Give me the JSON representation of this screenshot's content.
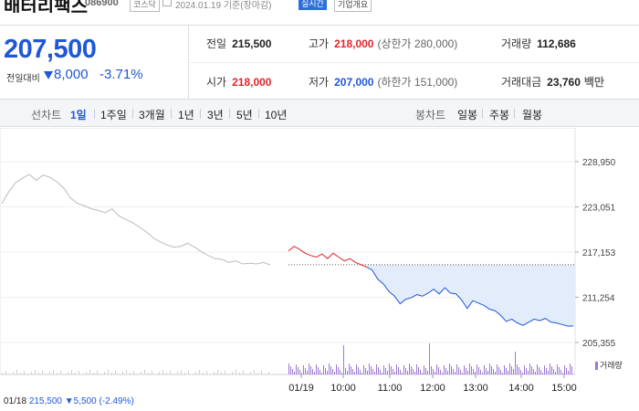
{
  "header": {
    "stock_name": "배터리팩스",
    "stock_code": "086900",
    "market": "코스닥",
    "date_basis": "2024.01.19 기준(장마감)",
    "live_button": "실시간",
    "overview_button": "기업개요"
  },
  "price": {
    "current": "207,500",
    "change_label": "전일대비",
    "change": "8,000",
    "change_pct": "-3.71%"
  },
  "stats": {
    "prev_close_label": "전일",
    "prev_close": "215,500",
    "high_label": "고가",
    "high": "218,000",
    "upper_limit": "(상한가 280,000)",
    "volume_label": "거래량",
    "volume": "112,686",
    "open_label": "시가",
    "open": "218,000",
    "low_label": "저가",
    "low": "207,000",
    "lower_limit": "(하한가 151,000)",
    "amount_label": "거래대금",
    "amount": "23,760",
    "amount_unit": "백만"
  },
  "toolbar": {
    "line_chart_label": "선차트",
    "ranges": [
      "1일",
      "1주일",
      "3개월",
      "1년",
      "3년",
      "5년",
      "10년"
    ],
    "active_range": "1일",
    "candle_label": "봉차트",
    "candles": [
      "일봉",
      "주봉",
      "월봉"
    ]
  },
  "colors": {
    "up": "#e0242d",
    "down": "#1f57d6",
    "prev_day": "#bbbbbb",
    "volume": "#9a79d6",
    "fill": "#e2ecfb"
  },
  "chart_data": {
    "type": "line",
    "y_ticks": [
      "228,950",
      "223,051",
      "217,153",
      "211,254",
      "205,355"
    ],
    "ylim": [
      205355,
      228950
    ],
    "x_ticks": [
      "01/19",
      "10:00",
      "11:00",
      "12:00",
      "13:00",
      "14:00",
      "15:00"
    ],
    "prev_close": 215500,
    "volume_legend": "거래량",
    "series": [
      {
        "x": [
          "01/18 09:00",
          "09:10",
          "09:20",
          "09:30",
          "09:40",
          "09:50",
          "10:00",
          "10:10",
          "10:20",
          "10:30",
          "10:40",
          "10:50",
          "11:00",
          "11:10",
          "11:20",
          "11:30",
          "11:40",
          "11:50",
          "12:00",
          "12:10",
          "12:20",
          "12:30",
          "12:40",
          "12:50",
          "13:00",
          "13:10",
          "13:20",
          "13:30",
          "13:40",
          "13:50",
          "14:00",
          "14:10",
          "14:20",
          "14:30",
          "14:40",
          "14:50",
          "15:00",
          "15:10",
          "15:20",
          "15:30"
        ],
        "values": [
          223500,
          225000,
          226200,
          226800,
          227300,
          226500,
          227200,
          226900,
          226300,
          225500,
          224200,
          223500,
          223200,
          222800,
          222600,
          222300,
          222800,
          221900,
          221400,
          221000,
          220400,
          219800,
          219000,
          218500,
          218100,
          217800,
          217900,
          218300,
          217800,
          217200,
          216700,
          216300,
          216200,
          215800,
          216000,
          215600,
          215700,
          215600,
          215800,
          215500
        ]
      },
      {
        "x": [
          "01/19 09:00",
          "09:05",
          "09:10",
          "09:15",
          "09:20",
          "09:25",
          "09:30",
          "09:35",
          "09:40",
          "09:45",
          "09:50",
          "09:55",
          "10:00",
          "10:05",
          "10:10",
          "10:15",
          "10:20",
          "10:25",
          "10:30",
          "10:35",
          "10:40",
          "10:45",
          "10:50",
          "10:55",
          "11:00",
          "11:10",
          "11:20",
          "11:30",
          "11:40",
          "11:50",
          "12:00",
          "12:10",
          "12:20",
          "12:30",
          "12:40",
          "12:50",
          "13:00",
          "13:10",
          "13:20",
          "13:30",
          "13:40",
          "13:50",
          "14:00",
          "14:10",
          "14:20",
          "14:30",
          "14:40",
          "14:50",
          "15:00",
          "15:10",
          "15:20",
          "15:30"
        ],
        "values": [
          217300,
          217900,
          217500,
          217000,
          216700,
          216500,
          216900,
          216300,
          217000,
          216500,
          216000,
          216300,
          215800,
          215500,
          215200,
          214800,
          213600,
          213000,
          212000,
          211400,
          210400,
          211000,
          211200,
          211600,
          211400,
          211800,
          212300,
          211700,
          212500,
          211800,
          211700,
          210900,
          209800,
          210800,
          210500,
          210200,
          209700,
          209500,
          208900,
          208100,
          208400,
          207900,
          207600,
          208000,
          208400,
          208200,
          208500,
          208000,
          207900,
          207700,
          207500,
          207500
        ]
      }
    ]
  },
  "bottom": {
    "prev_date": "01/18",
    "prev_price": "215,500",
    "prev_change": "5,500",
    "prev_pct": "(-2.49%)"
  }
}
